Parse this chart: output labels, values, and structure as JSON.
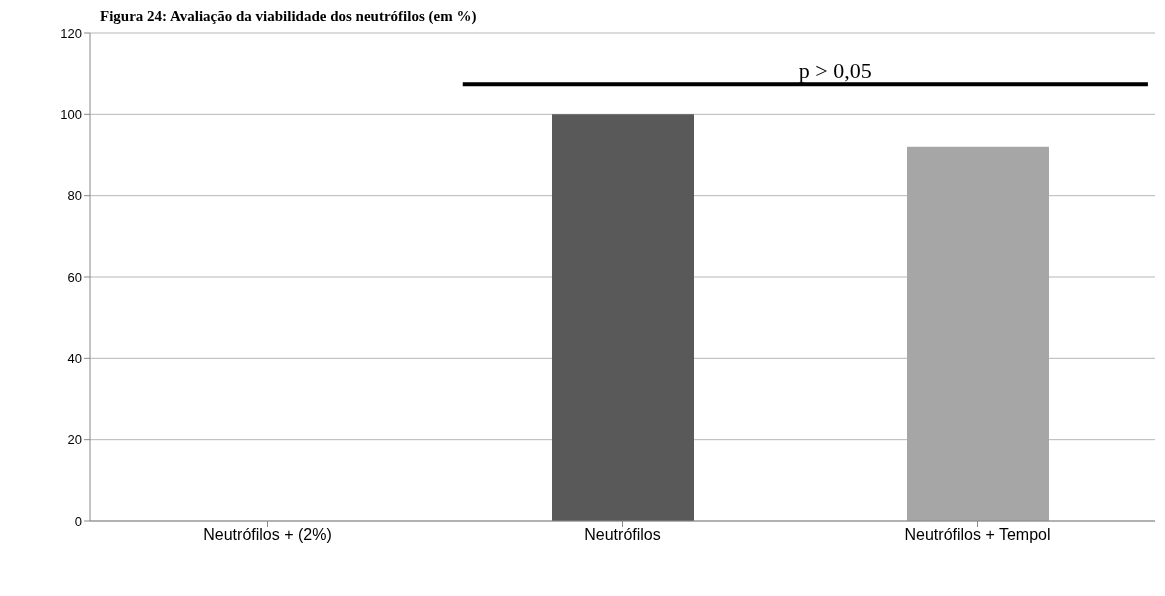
{
  "chart_data": {
    "type": "bar",
    "title": "Figura 24: Avaliação da viabilidade dos neutrófilos (em %)",
    "categories": [
      "Neutrófilos + (2%)",
      "Neutrófilos",
      "Neutrófilos + Tempol"
    ],
    "values": [
      0,
      100,
      92
    ],
    "colors": [
      "#595959",
      "#595959",
      "#a6a6a6"
    ],
    "ylim": [
      0,
      120
    ],
    "yticks": [
      0,
      20,
      40,
      60,
      80,
      100,
      120
    ],
    "grid": "y",
    "legend": false,
    "annotations": [
      "p > 0,05"
    ]
  }
}
